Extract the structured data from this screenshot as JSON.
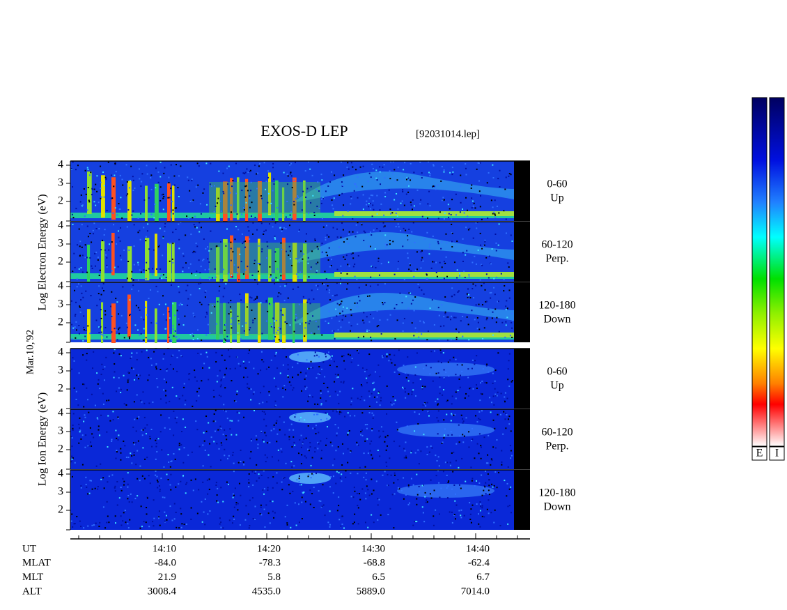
{
  "header": {
    "title": "EXOS-D LEP",
    "file": "[92031014.lep]"
  },
  "side_labels": {
    "date": "Mar.10,'92",
    "electron": "Log Electron Energy (eV)",
    "ion": "Log Ion Energy (eV)"
  },
  "panels": [
    {
      "angle": "0-60",
      "direction": "Up",
      "ticks": [
        "4",
        "3",
        "2"
      ]
    },
    {
      "angle": "60-120",
      "direction": "Perp.",
      "ticks": [
        "4",
        "3",
        "2"
      ]
    },
    {
      "angle": "120-180",
      "direction": "Down",
      "ticks": [
        "4",
        "3",
        "2"
      ]
    },
    {
      "angle": "0-60",
      "direction": "Up",
      "ticks": [
        "4",
        "3",
        "2"
      ]
    },
    {
      "angle": "60-120",
      "direction": "Perp.",
      "ticks": [
        "4",
        "3",
        "2"
      ]
    },
    {
      "angle": "120-180",
      "direction": "Down",
      "ticks": [
        "4",
        "3",
        "2"
      ]
    }
  ],
  "time_axis": {
    "rows": [
      {
        "label": "UT",
        "values": [
          "14:10",
          "14:20",
          "14:30",
          "14:40"
        ]
      },
      {
        "label": "MLAT",
        "values": [
          "-84.0",
          "-78.3",
          "-68.8",
          "-62.4"
        ]
      },
      {
        "label": "MLT",
        "values": [
          "21.9",
          "5.8",
          "6.5",
          "6.7"
        ]
      },
      {
        "label": "ALT",
        "values": [
          "3008.4",
          "4535.0",
          "5889.0",
          "7014.0"
        ]
      }
    ]
  },
  "colorbars": [
    "E",
    "I"
  ]
}
